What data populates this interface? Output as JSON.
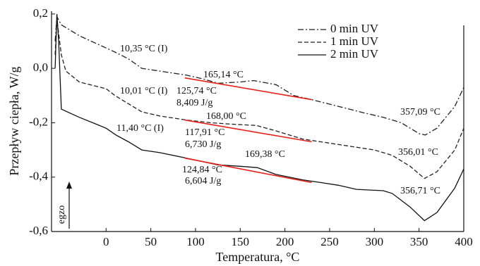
{
  "chart_data": {
    "type": "line",
    "xlabel": "Temperatura, °C",
    "ylabel": "Przepływ ciepła, W/g",
    "direction_label": "egzo",
    "xlim": [
      -61,
      400
    ],
    "ylim": [
      -0.6,
      0.21
    ],
    "xticks": [
      0,
      50,
      100,
      150,
      200,
      250,
      300,
      350,
      400
    ],
    "yticks": [
      {
        "value": -0.6,
        "label": "-0,6"
      },
      {
        "value": -0.4,
        "label": "-0,4"
      },
      {
        "value": -0.2,
        "label": "-0,2"
      },
      {
        "value": 0.0,
        "label": "0,0"
      },
      {
        "value": 0.2,
        "label": "0,2"
      }
    ],
    "legend": "upper right",
    "series": [
      {
        "name": "0 min UV",
        "color": "#222",
        "dash": "dashdot",
        "x": [
          -57,
          -55,
          -50,
          -40,
          -30,
          0,
          10,
          25,
          40,
          60,
          90,
          110,
          125,
          150,
          165,
          190,
          210,
          230,
          260,
          290,
          310,
          330,
          350,
          357,
          370,
          390,
          400
        ],
        "values": [
          0.1,
          0.19,
          0.16,
          0.14,
          0.12,
          0.075,
          0.06,
          0.035,
          0.0,
          -0.01,
          -0.025,
          -0.04,
          -0.055,
          -0.05,
          -0.045,
          -0.06,
          -0.1,
          -0.115,
          -0.14,
          -0.165,
          -0.18,
          -0.2,
          -0.24,
          -0.245,
          -0.22,
          -0.14,
          -0.07
        ]
      },
      {
        "name": "1 min UV",
        "color": "#222",
        "dash": "dashed",
        "x": [
          -57,
          -55,
          -50,
          -45,
          -30,
          0,
          10,
          25,
          40,
          60,
          90,
          117,
          140,
          168,
          190,
          220,
          240,
          270,
          300,
          320,
          340,
          356,
          370,
          390,
          400
        ],
        "values": [
          0.05,
          0.18,
          0.05,
          -0.01,
          -0.05,
          -0.075,
          -0.1,
          -0.13,
          -0.16,
          -0.175,
          -0.19,
          -0.2,
          -0.205,
          -0.21,
          -0.23,
          -0.26,
          -0.27,
          -0.285,
          -0.3,
          -0.32,
          -0.36,
          -0.405,
          -0.38,
          -0.3,
          -0.22
        ]
      },
      {
        "name": "2 min UV",
        "color": "#111",
        "dash": "solid",
        "x": [
          -57,
          -55,
          -53,
          -50,
          -30,
          -15,
          0,
          11,
          25,
          40,
          60,
          90,
          125,
          150,
          169,
          190,
          220,
          240,
          260,
          280,
          310,
          320,
          340,
          356,
          370,
          390,
          400
        ],
        "values": [
          0.0,
          0.2,
          0.1,
          -0.15,
          -0.18,
          -0.2,
          -0.22,
          -0.245,
          -0.27,
          -0.3,
          -0.31,
          -0.33,
          -0.355,
          -0.36,
          -0.365,
          -0.39,
          -0.41,
          -0.42,
          -0.43,
          -0.445,
          -0.45,
          -0.46,
          -0.51,
          -0.56,
          -0.53,
          -0.44,
          -0.37
        ]
      }
    ],
    "baselines": {
      "color": "#e8201a",
      "lines": [
        {
          "x": [
            88,
            230
          ],
          "values": [
            -0.035,
            -0.115
          ]
        },
        {
          "x": [
            88,
            230
          ],
          "values": [
            -0.19,
            -0.27
          ]
        },
        {
          "x": [
            88,
            230
          ],
          "values": [
            -0.33,
            -0.42
          ]
        }
      ]
    },
    "annotations": [
      "10,35 °C (I)",
      "165,14 °C",
      "125,74 °C",
      "8,409 J/g",
      "10,01 °C (I)",
      "168,00 °C",
      "117,91 °C",
      "6,730 J/g",
      "11,40 °C (I)",
      "169,38 °C",
      "124,84 °C",
      "6,604 J/g",
      "357,09 °C",
      "356,01 °C",
      "356,71 °C"
    ]
  }
}
